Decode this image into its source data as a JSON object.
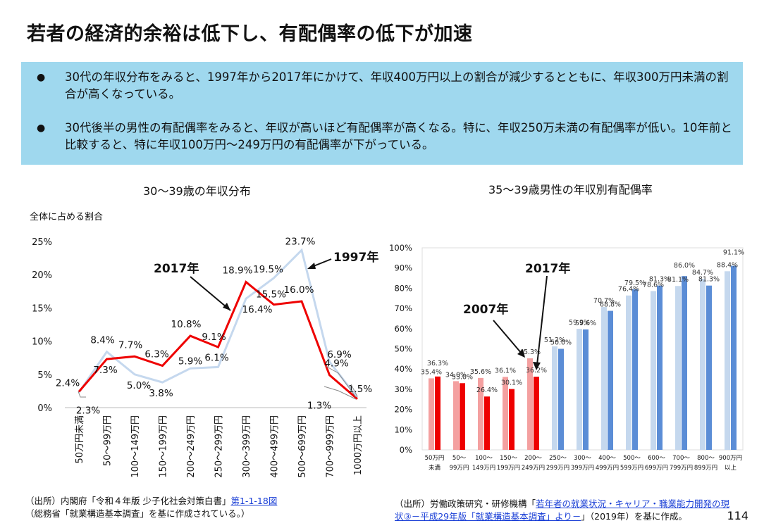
{
  "title": "若者の経済的余裕は低下し、有配偶率の低下が加速",
  "summary": [
    "30代の年収分布をみると、1997年から2017年にかけて、年収400万円以上の割合が減少するとともに、年収300万円未満の割合が高くなっている。",
    "30代後半の男性の有配偶率をみると、年収が高いほど有配偶率が高くなる。特に、年収250万未満の有配偶率が低い。10年前と比較すると、特に年収100万円～249万円の有配偶率が下がっている。"
  ],
  "bullet_symbol": "●",
  "colors": {
    "red": "#ee0000",
    "light_blue": "#c5d8ee",
    "light_red": "#f4a0a0",
    "blue": "#5b8dd6",
    "band": "#9fd8ee"
  },
  "chart_data": [
    {
      "type": "line",
      "title": "30～39歳の年収分布",
      "ylabel": "全体に占める割合",
      "categories": [
        "50万円未満",
        "50～99万円",
        "100～149万円",
        "150～199万円",
        "200～249万円",
        "250～299万円",
        "300～399万円",
        "400～499万円",
        "500～699万円",
        "700～999万円",
        "1000万円以上"
      ],
      "yticks": [
        "0%",
        "5%",
        "10%",
        "15%",
        "20%",
        "25%"
      ],
      "ylim": [
        0,
        25
      ],
      "series": [
        {
          "name": "1997年",
          "values": [
            2.3,
            8.4,
            5.0,
            3.8,
            5.9,
            6.1,
            16.4,
            19.5,
            23.7,
            6.9,
            1.5
          ],
          "labels": [
            "2.3%",
            "8.4%",
            "5.0%",
            "3.8%",
            "5.9%",
            "6.1%",
            "16.4%",
            "19.5%",
            "23.7%",
            "6.9%",
            "1.5%"
          ]
        },
        {
          "name": "2017年",
          "values": [
            2.4,
            7.3,
            7.7,
            6.3,
            10.8,
            9.1,
            18.9,
            15.5,
            16.0,
            4.9,
            1.3
          ],
          "labels": [
            "2.4%",
            "7.3%",
            "7.7%",
            "6.3%",
            "10.8%",
            "9.1%",
            "18.9%",
            "15.5%",
            "16.0%",
            "4.9%",
            "1.3%"
          ]
        }
      ]
    },
    {
      "type": "bar",
      "title": "35～39歳男性の年収別有配偶率",
      "categories": [
        [
          "50万円",
          "未満"
        ],
        [
          "50～",
          "99万円"
        ],
        [
          "100～",
          "149万円"
        ],
        [
          "150～",
          "199万円"
        ],
        [
          "200～",
          "249万円"
        ],
        [
          "250～",
          "299万円"
        ],
        [
          "300～",
          "399万円"
        ],
        [
          "400～",
          "499万円"
        ],
        [
          "500～",
          "599万円"
        ],
        [
          "600～",
          "699万円"
        ],
        [
          "700～",
          "799万円"
        ],
        [
          "800～",
          "899万円"
        ],
        [
          "900万円",
          "以上"
        ]
      ],
      "yticks": [
        "0%",
        "10%",
        "20%",
        "30%",
        "40%",
        "50%",
        "60%",
        "70%",
        "80%",
        "90%",
        "100%"
      ],
      "ylim": [
        0,
        100
      ],
      "series": [
        {
          "name": "2007年",
          "values": [
            35.4,
            34.0,
            35.6,
            36.1,
            45.3,
            51.2,
            59.9,
            70.7,
            76.4,
            78.6,
            81.1,
            84.7,
            88.4
          ],
          "labels": [
            "35.4%",
            "34.0%",
            "35.6%",
            "36.1%",
            "45.3%",
            "51.2%",
            "59.9%",
            "70.7%",
            "76.4%",
            "78.6%",
            "81.1%",
            "84.7%",
            "88.4%"
          ]
        },
        {
          "name": "2017年",
          "values": [
            36.3,
            33.0,
            26.4,
            30.1,
            36.2,
            50.0,
            59.6,
            68.8,
            79.5,
            81.3,
            86.0,
            81.3,
            91.1
          ],
          "labels": [
            "36.3%",
            "33.0%",
            "26.4%",
            "30.1%",
            "36.2%",
            "50.0%",
            "59.6%",
            "68.8%",
            "79.5%",
            "81.3%",
            "86.0%",
            "81.3%",
            "91.1%"
          ]
        }
      ]
    }
  ],
  "footer_left": {
    "prefix": "（出所）内閣府「令和４年版 少子化社会対策白書」",
    "link": "第1-1-18図",
    "line2": "（総務省「就業構造基本調査」を基に作成されている。）"
  },
  "footer_right": {
    "prefix": "（出所）労働政策研究・研修機構「",
    "link1": "若年者の就業状況・キャリア・職業能力開発の現",
    "link2": "状③－平成29年版「就業構造基本調査」より－",
    "suffix": "」（2019年）を基に作成。"
  },
  "page_number": "114"
}
